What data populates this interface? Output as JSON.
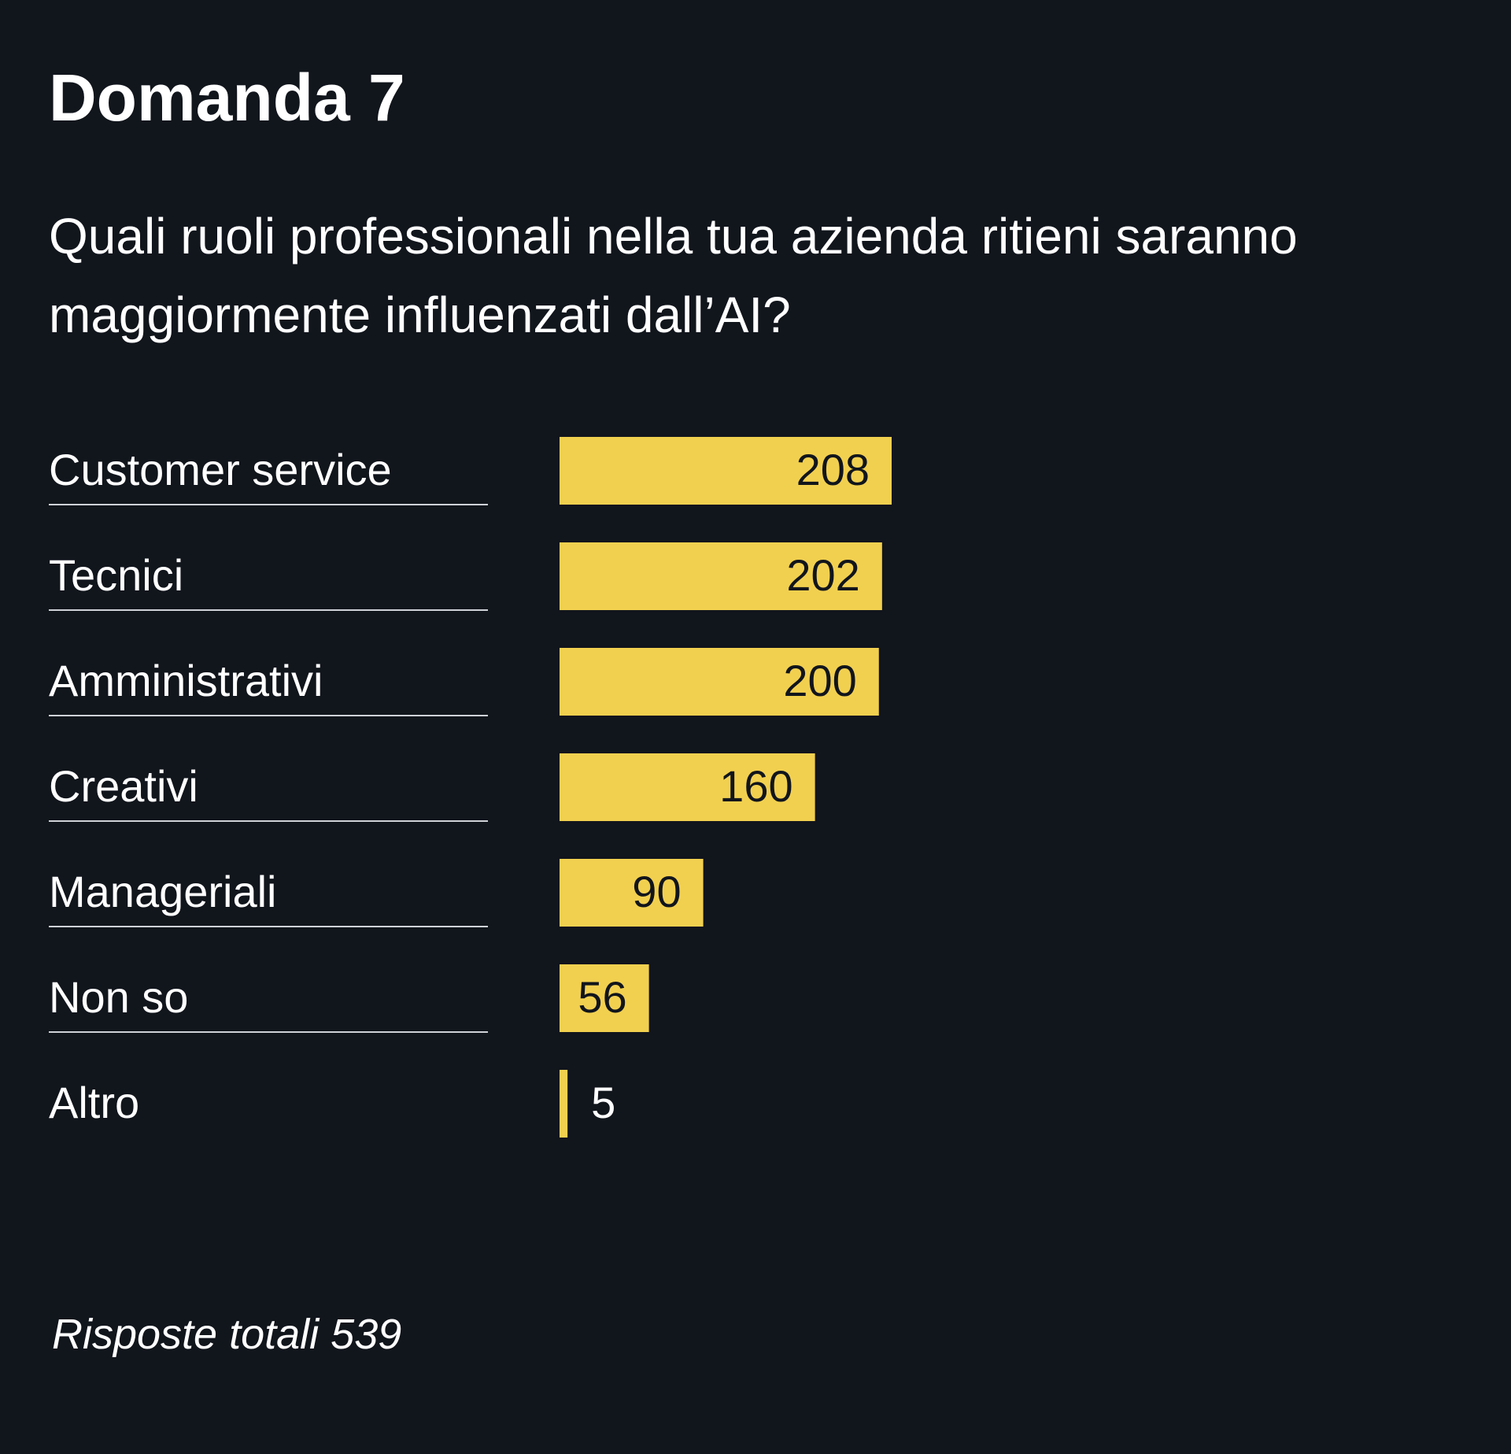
{
  "header": {
    "title": "Domanda 7",
    "question": "Quali ruoli professionali nella tua azienda ritieni saranno maggiormente influenzati dall’AI?"
  },
  "footer": {
    "note": "Risposte totali 539"
  },
  "colors": {
    "background": "#11151c",
    "bar": "#f2d04f",
    "text": "#ffffff",
    "bar_label_inside": "#11151c",
    "divider": "#cfd3d8"
  },
  "chart_data": {
    "type": "bar",
    "orientation": "horizontal",
    "categories": [
      "Customer service",
      "Tecnici",
      "Amministrativi",
      "Creativi",
      "Manageriali",
      "Non so",
      "Altro"
    ],
    "values": [
      208,
      202,
      200,
      160,
      90,
      56,
      5
    ],
    "data_labels": [
      "208",
      "202",
      "200",
      "160",
      "90",
      "56",
      "5"
    ],
    "xlim": [
      0,
      208
    ],
    "grid": false,
    "legend": "none"
  }
}
